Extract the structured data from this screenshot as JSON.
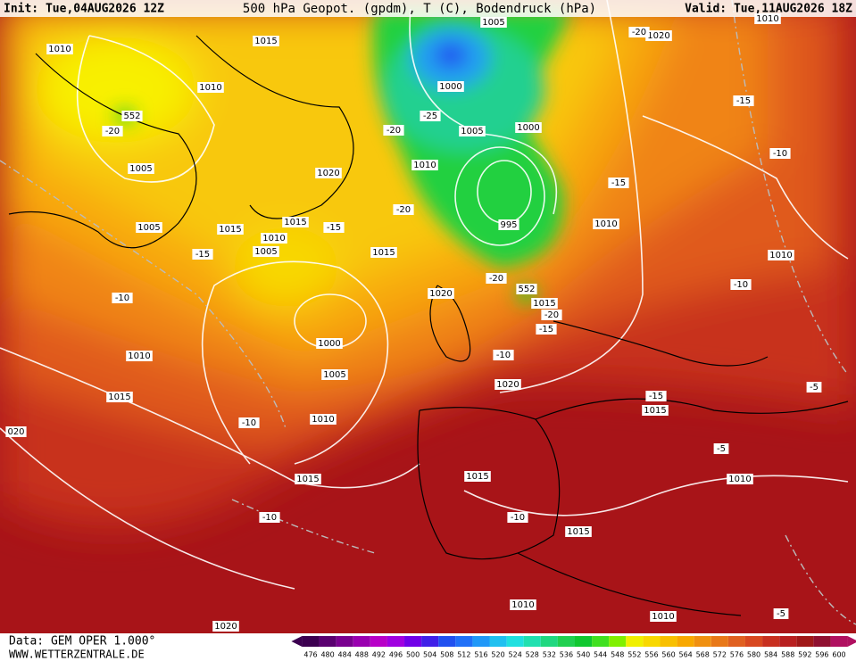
{
  "header": {
    "init": "Init: Tue,04AUG2026 12Z",
    "title": "500 hPa Geopot. (gpdm), T (C), Bodendruck (hPa)",
    "valid": "Valid: Tue,11AUG2026 18Z"
  },
  "footer": {
    "data": "Data: GEM OPER 1.000°",
    "website": "WWW.WETTERZENTRALE.DE"
  },
  "contour_labels": [
    "1010",
    "1015",
    "1005",
    "1010",
    "1020",
    "-20",
    "1010",
    "552",
    "-20",
    "1000",
    "-25",
    "-20",
    "1005",
    "1000",
    "-15",
    "-10",
    "1005",
    "1010",
    "1020",
    "-15",
    "1005",
    "1015",
    "1015",
    "-15",
    "-20",
    "995",
    "1010",
    "1010",
    "1005",
    "-15",
    "1015",
    "1010",
    "-20",
    "552",
    "-10",
    "-10",
    "1020",
    "1015",
    "-20",
    "-15",
    "1000",
    "1010",
    "-10",
    "1005",
    "1020",
    "1015",
    "-15",
    "1015",
    "-5",
    "1010",
    "-10",
    "020",
    "-5",
    "1015",
    "1015",
    "1010",
    "-10",
    "-10",
    "1015",
    "1010",
    "1010",
    "-5",
    "1020"
  ],
  "scale": {
    "labels": [
      476,
      480,
      484,
      488,
      492,
      496,
      500,
      504,
      508,
      512,
      516,
      520,
      524,
      528,
      532,
      536,
      540,
      544,
      548,
      552,
      556,
      560,
      564,
      568,
      572,
      576,
      580,
      584,
      588,
      592,
      596,
      600
    ],
    "colors": [
      "#3c0050",
      "#5a0070",
      "#7a0090",
      "#9a00b0",
      "#b800c8",
      "#a000e0",
      "#7000e8",
      "#4020e8",
      "#2050f0",
      "#2070f8",
      "#2098f8",
      "#20c0f0",
      "#20e0e0",
      "#20e0b0",
      "#20d880",
      "#20d050",
      "#10c830",
      "#40e020",
      "#80f000",
      "#f0f000",
      "#f8d800",
      "#f8c000",
      "#f8a800",
      "#f09010",
      "#e87818",
      "#e06020",
      "#d84820",
      "#c83020",
      "#b82020",
      "#a01818",
      "#901030",
      "#b01060"
    ]
  }
}
